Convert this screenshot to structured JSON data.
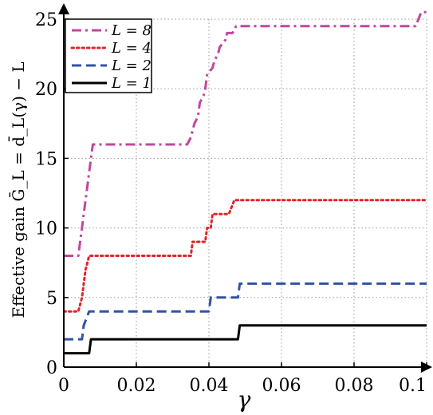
{
  "chart_data": {
    "type": "line",
    "xlabel": "γ",
    "ylabel": "Effective gain Ḡ_L = d̄_L(γ) − L",
    "xlim": [
      0,
      0.1
    ],
    "ylim": [
      0,
      25
    ],
    "xticks": [
      0,
      0.02,
      0.04,
      0.06,
      0.08,
      0.1
    ],
    "xtick_labels": [
      "0",
      "0.02",
      "0.04",
      "0.06",
      "0.08",
      "0.1"
    ],
    "yticks": [
      0,
      5,
      10,
      15,
      20,
      25
    ],
    "ytick_labels": [
      "0",
      "5",
      "10",
      "15",
      "20",
      "25"
    ],
    "grid": true,
    "legend_position": "top-left",
    "series": [
      {
        "name": "L = 8",
        "color": "#c0479e",
        "dash": "dashdot",
        "points": [
          [
            0,
            8
          ],
          [
            0.004,
            8
          ],
          [
            0.0045,
            9
          ],
          [
            0.005,
            10
          ],
          [
            0.0055,
            11
          ],
          [
            0.006,
            12
          ],
          [
            0.0065,
            13
          ],
          [
            0.007,
            14
          ],
          [
            0.0075,
            15
          ],
          [
            0.008,
            16
          ],
          [
            0.034,
            16
          ],
          [
            0.035,
            16.5
          ],
          [
            0.0355,
            17
          ],
          [
            0.036,
            17.5
          ],
          [
            0.037,
            18
          ],
          [
            0.0375,
            19
          ],
          [
            0.0385,
            19.5
          ],
          [
            0.039,
            20
          ],
          [
            0.0395,
            21
          ],
          [
            0.041,
            21.5
          ],
          [
            0.0415,
            22
          ],
          [
            0.0425,
            22.5
          ],
          [
            0.043,
            23
          ],
          [
            0.0445,
            23.5
          ],
          [
            0.045,
            24
          ],
          [
            0.0465,
            24
          ],
          [
            0.0475,
            24.5
          ],
          [
            0.097,
            24.5
          ],
          [
            0.0985,
            25.5
          ],
          [
            0.1,
            25.5
          ]
        ]
      },
      {
        "name": "L = 4",
        "color": "#e0242a",
        "dash": "dotted",
        "points": [
          [
            0,
            4
          ],
          [
            0.004,
            4
          ],
          [
            0.005,
            5
          ],
          [
            0.0055,
            6
          ],
          [
            0.006,
            7
          ],
          [
            0.007,
            8
          ],
          [
            0.035,
            8
          ],
          [
            0.0355,
            9
          ],
          [
            0.039,
            9
          ],
          [
            0.0395,
            10
          ],
          [
            0.0405,
            10
          ],
          [
            0.041,
            11
          ],
          [
            0.0455,
            11
          ],
          [
            0.047,
            12
          ],
          [
            0.1,
            12
          ]
        ]
      },
      {
        "name": "L = 2",
        "color": "#3153a4",
        "dash": "dashed",
        "points": [
          [
            0,
            2
          ],
          [
            0.005,
            2
          ],
          [
            0.0055,
            3
          ],
          [
            0.007,
            4
          ],
          [
            0.04,
            4
          ],
          [
            0.0405,
            5
          ],
          [
            0.048,
            5
          ],
          [
            0.0485,
            6
          ],
          [
            0.1,
            6
          ]
        ]
      },
      {
        "name": "L = 1",
        "color": "#000000",
        "dash": "solid",
        "points": [
          [
            0,
            1
          ],
          [
            0.007,
            1
          ],
          [
            0.0075,
            2
          ],
          [
            0.048,
            2
          ],
          [
            0.0485,
            3
          ],
          [
            0.1,
            3
          ]
        ]
      }
    ]
  }
}
